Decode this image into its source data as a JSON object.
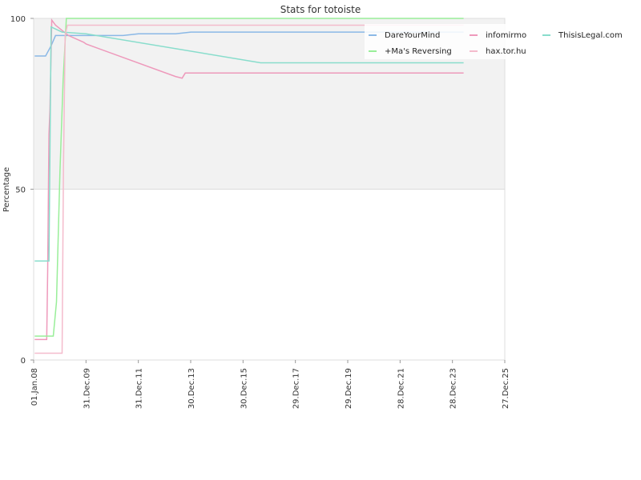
{
  "chart_data": {
    "type": "line",
    "title": "Stats for totoiste",
    "xlabel": "",
    "ylabel": "Percentage",
    "x_ticks": [
      "01.Jan.08",
      "31.Dec.09",
      "31.Dec.11",
      "30.Dec.13",
      "30.Dec.15",
      "29.Dec.17",
      "29.Dec.19",
      "28.Dec.21",
      "28.Dec.23",
      "27.Dec.25"
    ],
    "xlim": [
      "2008-01-01",
      "2025-12-27"
    ],
    "y_ticks": [
      0,
      50,
      100
    ],
    "ylim": [
      0,
      100
    ],
    "grid": true,
    "legend_position": "top-right",
    "series": [
      {
        "name": "DareYourMind",
        "color": "#8ab8e6",
        "points": [
          [
            "2008-01-15",
            89
          ],
          [
            "2008-06-15",
            89
          ],
          [
            "2008-09-01",
            92
          ],
          [
            "2008-11-01",
            95
          ],
          [
            "2009-03-01",
            95
          ],
          [
            "2010-01-01",
            95
          ],
          [
            "2011-06-01",
            95
          ],
          [
            "2012-01-01",
            95.5
          ],
          [
            "2013-06-01",
            95.5
          ],
          [
            "2014-01-01",
            96
          ],
          [
            "2020-01-01",
            96
          ],
          [
            "2024-06-01",
            96
          ]
        ]
      },
      {
        "name": "infomirmo",
        "color": "#ee99bb",
        "points": [
          [
            "2008-01-15",
            6
          ],
          [
            "2008-07-01",
            6
          ],
          [
            "2008-07-15",
            26
          ],
          [
            "2008-08-01",
            66
          ],
          [
            "2008-08-15",
            73
          ],
          [
            "2008-09-10",
            99.5
          ],
          [
            "2008-11-01",
            98
          ],
          [
            "2009-05-01",
            95
          ],
          [
            "2009-12-01",
            93
          ],
          [
            "2010-01-01",
            92.5
          ],
          [
            "2013-06-01",
            83
          ],
          [
            "2013-09-01",
            82.5
          ],
          [
            "2013-10-15",
            84
          ],
          [
            "2024-06-01",
            84
          ]
        ]
      },
      {
        "name": "ThisisLegal.com",
        "color": "#88ddcc",
        "points": [
          [
            "2008-01-15",
            29
          ],
          [
            "2008-08-01",
            29
          ],
          [
            "2008-09-01",
            97.5
          ],
          [
            "2009-02-01",
            96
          ],
          [
            "2010-01-01",
            95.5
          ],
          [
            "2016-09-01",
            87
          ],
          [
            "2024-06-01",
            87
          ]
        ]
      },
      {
        "name": "+Ma's Reversing",
        "color": "#99ee99",
        "points": [
          [
            "2008-01-15",
            7
          ],
          [
            "2008-10-01",
            7
          ],
          [
            "2008-11-15",
            17
          ],
          [
            "2009-01-01",
            55
          ],
          [
            "2009-02-15",
            82
          ],
          [
            "2009-04-01",
            100
          ],
          [
            "2024-06-01",
            100
          ]
        ]
      },
      {
        "name": "hax.tor.hu",
        "color": "#f4bbcc",
        "points": [
          [
            "2008-01-15",
            2
          ],
          [
            "2009-02-01",
            2
          ],
          [
            "2009-02-20",
            56
          ],
          [
            "2009-03-15",
            95
          ],
          [
            "2009-04-15",
            98
          ],
          [
            "2024-06-01",
            98
          ]
        ]
      }
    ]
  }
}
